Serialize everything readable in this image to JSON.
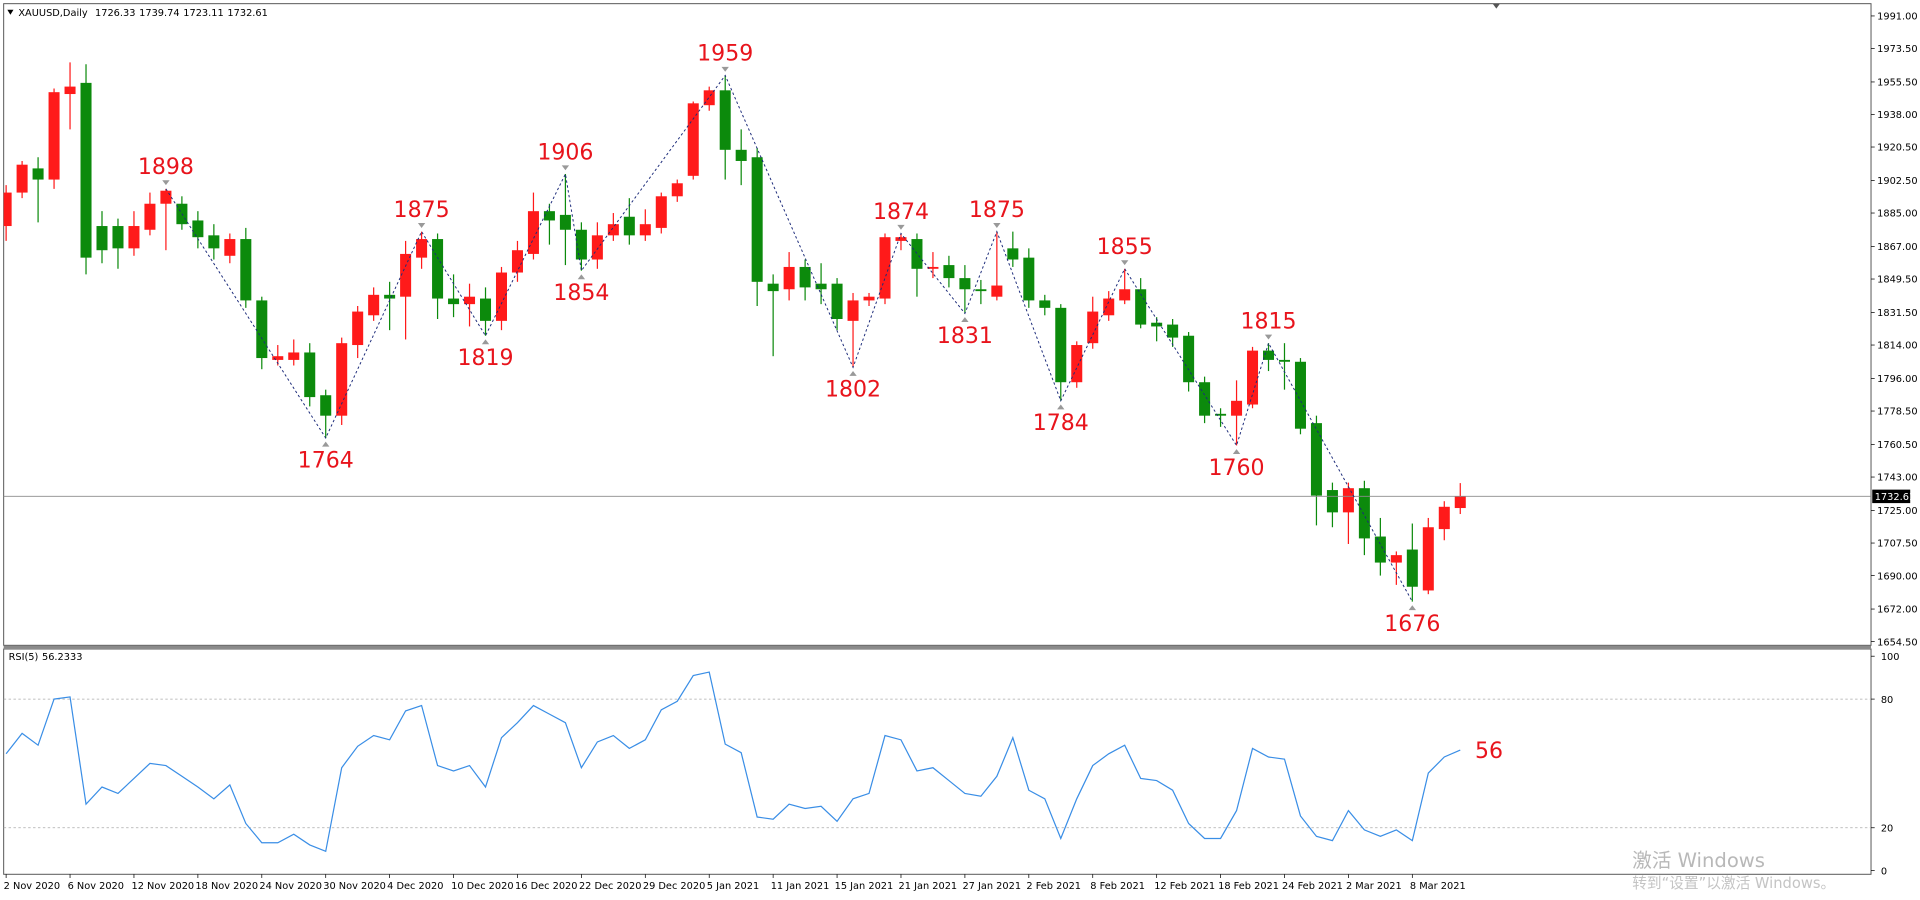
{
  "chart_data": {
    "type": "candlestick",
    "symbol": "XAUUSD,Daily",
    "categories": [
      "2 Nov 2020",
      null,
      null,
      null,
      "6 Nov 2020",
      null,
      null,
      null,
      "12 Nov 2020",
      null,
      null,
      null,
      "18 Nov 2020",
      null,
      null,
      null,
      "24 Nov 2020",
      null,
      null,
      null,
      "30 Nov 2020",
      null,
      null,
      null,
      "4 Dec 2020",
      null,
      null,
      null,
      "10 Dec 2020",
      null,
      null,
      null,
      "16 Dec 2020",
      null,
      null,
      null,
      "22 Dec 2020",
      null,
      null,
      null,
      "29 Dec 2020",
      null,
      null,
      null,
      "5 Jan 2021",
      null,
      null,
      null,
      "11 Jan 2021",
      null,
      null,
      null,
      "15 Jan 2021",
      null,
      null,
      null,
      "21 Jan 2021",
      null,
      null,
      null,
      "27 Jan 2021",
      null,
      null,
      null,
      "2 Feb 2021",
      null,
      null,
      null,
      "8 Feb 2021",
      null,
      null,
      null,
      "12 Feb 2021",
      null,
      null,
      null,
      "18 Feb 2021",
      null,
      null,
      null,
      "24 Feb 2021",
      null,
      null,
      null,
      "2 Mar 2021",
      null,
      null,
      null,
      "8 Mar 2021",
      null,
      null,
      null
    ],
    "open": [
      1878,
      1896,
      1909,
      1903,
      1949,
      1955,
      1878,
      1878,
      1866,
      1876,
      1890,
      1890,
      1881,
      1873,
      1862,
      1871,
      1838,
      1806,
      1806,
      1810,
      1787,
      1776,
      1814,
      1830,
      1841,
      1840,
      1861,
      1871,
      1839,
      1836,
      1839,
      1827,
      1853,
      1863,
      1886,
      1884,
      1876,
      1860,
      1873,
      1883,
      1873,
      1877,
      1894,
      1905,
      1943,
      1951,
      1919,
      1915,
      1847,
      1844,
      1856,
      1847,
      1847,
      1827,
      1838,
      1839,
      1870,
      1871,
      1855,
      1857,
      1850,
      1844,
      1840,
      1866,
      1861,
      1838,
      1834,
      1794,
      1815,
      1830,
      1838,
      1844,
      1826,
      1825,
      1819,
      1794,
      1777,
      1776,
      1782,
      1811,
      1806,
      1805,
      1772,
      1736,
      1724,
      1737,
      1711,
      1697,
      1704,
      1682,
      1715,
      1726.33
    ],
    "high": [
      1900,
      1913,
      1915,
      1952,
      1966,
      1965,
      1886,
      1882,
      1886,
      1896,
      1898,
      1894,
      1886,
      1879,
      1874,
      1877,
      1840,
      1814,
      1817,
      1815,
      1790,
      1818,
      1835,
      1845,
      1848,
      1870,
      1875,
      1874,
      1852,
      1847,
      1845,
      1856,
      1870,
      1896,
      1890,
      1906,
      1880,
      1880,
      1885,
      1893,
      1887,
      1896,
      1903,
      1945,
      1953,
      1959,
      1930,
      1920,
      1852,
      1864,
      1860,
      1858,
      1850,
      1842,
      1842,
      1874,
      1874,
      1874,
      1864,
      1862,
      1857,
      1849,
      1875,
      1875,
      1866,
      1841,
      1836,
      1816,
      1840,
      1843,
      1855,
      1850,
      1829,
      1828,
      1821,
      1797,
      1780,
      1795,
      1813,
      1815,
      1815,
      1807,
      1776,
      1740,
      1740,
      1741,
      1721,
      1703,
      1718,
      1721,
      1730,
      1739.74
    ],
    "low": [
      1870,
      1893,
      1880,
      1898,
      1930,
      1852,
      1858,
      1855,
      1862,
      1873,
      1865,
      1876,
      1866,
      1860,
      1858,
      1834,
      1801,
      1803,
      1803,
      1781,
      1764,
      1771,
      1807,
      1827,
      1822,
      1817,
      1855,
      1828,
      1829,
      1824,
      1819,
      1822,
      1848,
      1860,
      1868,
      1857,
      1854,
      1855,
      1870,
      1868,
      1870,
      1874,
      1891,
      1903,
      1940,
      1903,
      1900,
      1835,
      1808,
      1838,
      1838,
      1836,
      1822,
      1802,
      1835,
      1836,
      1865,
      1840,
      1850,
      1845,
      1831,
      1836,
      1838,
      1856,
      1834,
      1830,
      1784,
      1791,
      1812,
      1827,
      1836,
      1823,
      1816,
      1813,
      1789,
      1772,
      1770,
      1760,
      1780,
      1800,
      1790,
      1766,
      1717,
      1716,
      1707,
      1701,
      1690,
      1685,
      1676,
      1680,
      1709,
      1723.11
    ],
    "close": [
      1896,
      1911,
      1903,
      1950,
      1953,
      1861,
      1865,
      1866,
      1878,
      1890,
      1897,
      1879,
      1872,
      1866,
      1871,
      1838,
      1807,
      1808,
      1810,
      1786,
      1776,
      1815,
      1832,
      1841,
      1839,
      1863,
      1871,
      1839,
      1836,
      1840,
      1827,
      1853,
      1865,
      1886,
      1881,
      1876,
      1860,
      1873,
      1879,
      1873,
      1879,
      1894,
      1901,
      1944,
      1951,
      1919,
      1913,
      1848,
      1843,
      1856,
      1845,
      1844,
      1828,
      1838,
      1840,
      1872,
      1872,
      1855,
      1856,
      1850,
      1844,
      1843,
      1846,
      1860,
      1838,
      1834,
      1794,
      1814,
      1832,
      1839,
      1844,
      1825,
      1824,
      1818,
      1794,
      1776,
      1776,
      1784,
      1811,
      1806,
      1805,
      1769,
      1733,
      1724,
      1737,
      1710,
      1697,
      1701,
      1684,
      1716,
      1727,
      1732.61
    ],
    "up_color": "#ff1a1a",
    "down_color": "#0c8a0c",
    "ylim": [
      1652.5,
      1997.6
    ],
    "yticks": [
      {
        "value": 1654.5,
        "label": "1654.50"
      },
      {
        "value": 1672,
        "label": "1672.00"
      },
      {
        "value": 1690,
        "label": "1690.00"
      },
      {
        "value": 1707.5,
        "label": "1707.50"
      },
      {
        "value": 1725,
        "label": "1725.00"
      },
      {
        "value": 1743,
        "label": "1743.00"
      },
      {
        "value": 1760.5,
        "label": "1760.50"
      },
      {
        "value": 1778.5,
        "label": "1778.50"
      },
      {
        "value": 1796,
        "label": "1796.00"
      },
      {
        "value": 1814,
        "label": "1814.00"
      },
      {
        "value": 1831.5,
        "label": "1831.50"
      },
      {
        "value": 1849.5,
        "label": "1849.50"
      },
      {
        "value": 1867,
        "label": "1867.00"
      },
      {
        "value": 1885,
        "label": "1885.00"
      },
      {
        "value": 1902.5,
        "label": "1902.50"
      },
      {
        "value": 1920.5,
        "label": "1920.50"
      },
      {
        "value": 1938,
        "label": "1938.00"
      },
      {
        "value": 1955.5,
        "label": "1955.50"
      },
      {
        "value": 1973.5,
        "label": "1973.50"
      },
      {
        "value": 1991,
        "label": "1991.00"
      }
    ],
    "zigzag": {
      "x": [
        10,
        20,
        26,
        30,
        35,
        36,
        45,
        53,
        56,
        60,
        62,
        66,
        70,
        77,
        79,
        88
      ],
      "values": [
        1898,
        1764,
        1875,
        1819,
        1906,
        1854,
        1959,
        1802,
        1874,
        1831,
        1875,
        1784,
        1855,
        1760,
        1815,
        1676
      ],
      "color": "#1c2b7a",
      "label_color": "#e8141c"
    },
    "rsi": {
      "name": "RSI(5)",
      "values": [
        54.5,
        64,
        58.5,
        80,
        81,
        31,
        39,
        36,
        43,
        50,
        49,
        44,
        39,
        33.5,
        40,
        22,
        13,
        13,
        17,
        12,
        9,
        48,
        58,
        63,
        61,
        74.5,
        77,
        49,
        46.5,
        49,
        39,
        62,
        69,
        77,
        73,
        69,
        48,
        60,
        63,
        57,
        61,
        75,
        79,
        91,
        92.6,
        59,
        55,
        25,
        24,
        31,
        29,
        30,
        23,
        33.5,
        36,
        63,
        61,
        46.5,
        48,
        42,
        36,
        34.7,
        44,
        62,
        37.5,
        33.5,
        15,
        33.5,
        49,
        54.5,
        58.5,
        43,
        42,
        37.5,
        22,
        15,
        15,
        28,
        57,
        53,
        52,
        25.5,
        16,
        14,
        28,
        19,
        16,
        19,
        14,
        45.5,
        53,
        56.2333
      ],
      "color": "#3a8ee6",
      "ylim": [
        -1.7,
        102.8
      ],
      "yticks": [
        0,
        20,
        80,
        100
      ],
      "levels": [
        20,
        80
      ],
      "marker": 56
    },
    "watermark": [
      "激活 Windows",
      "转到“设置”以激活 Windows。"
    ]
  }
}
